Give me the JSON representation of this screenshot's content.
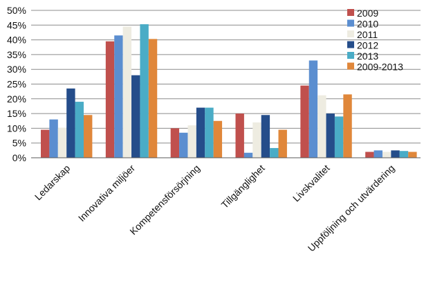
{
  "chart_data": {
    "type": "bar",
    "categories": [
      "Ledarskap",
      "Innovativa miljöer",
      "Kompetensförsörjning",
      "Tillgänglighet",
      "Livskvalitet",
      "Uppföljning och utvärdering"
    ],
    "series": [
      {
        "name": "2009",
        "color": "#c0504d",
        "values": [
          9.5,
          39.5,
          10,
          15,
          24.5,
          2
        ]
      },
      {
        "name": "2010",
        "color": "#5b8ed0",
        "values": [
          13,
          41.5,
          8.5,
          1.7,
          33,
          2.5
        ]
      },
      {
        "name": "2011",
        "color": "#eeece1",
        "values": [
          10.2,
          44.5,
          11,
          12,
          21.2,
          2
        ]
      },
      {
        "name": "2012",
        "color": "#254d8a",
        "values": [
          23.5,
          28,
          17,
          14.5,
          15,
          2.5
        ]
      },
      {
        "name": "2013",
        "color": "#4aacc6",
        "values": [
          19,
          45.3,
          17,
          3.3,
          14,
          2.3
        ]
      },
      {
        "name": "2009-2013",
        "color": "#e0873a",
        "values": [
          14.5,
          40.3,
          12.5,
          9.5,
          21.5,
          2
        ]
      }
    ],
    "yticks": [
      "0%",
      "5%",
      "10%",
      "15%",
      "20%",
      "25%",
      "30%",
      "35%",
      "40%",
      "45%",
      "50%"
    ],
    "ylim": [
      0,
      50
    ],
    "grid": true,
    "legend": "top-right",
    "title": "",
    "xlabel": "",
    "ylabel": ""
  }
}
